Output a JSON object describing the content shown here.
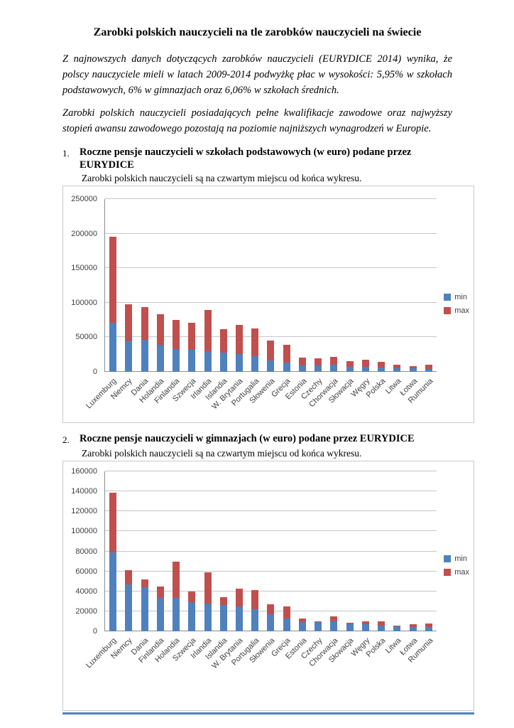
{
  "doc": {
    "title": "Zarobki polskich nauczycieli na tle zarobków nauczycieli na świecie",
    "paragraph1": "Z najnowszych danych dotyczących zarobków nauczycieli (EURYDICE 2014) wynika, że polscy nauczyciele mieli w latach 2009-2014 podwyżkę płac w wysokości: 5,95% w szkołach podstawowych, 6% w gimnazjach oraz 6,06% w szkołach średnich.",
    "paragraph2": "Zarobki polskich nauczycieli posiadających pełne kwalifikacje zawodowe oraz najwyższy stopień awansu zawodowego pozostają na poziomie najniższych wynagrodzeń w Europie.",
    "items": [
      {
        "number": "1.",
        "heading": "Roczne pensje nauczycieli w szkołach podstawowych (w euro) podane przez EURYDICE",
        "caption": "Zarobki polskich nauczycieli są na czwartym miejscu od końca wykresu."
      },
      {
        "number": "2.",
        "heading": "Roczne pensje nauczycieli w gimnazjach (w euro) podane przez EURYDICE",
        "caption": "Zarobki polskich nauczycieli są na czwartym miejscu od końca wykresu."
      }
    ]
  },
  "chart_data": [
    {
      "type": "bar",
      "stacked": true,
      "title": "Roczne pensje nauczycieli w szkołach podstawowych (w euro)",
      "categories": [
        "Luxemburg",
        "Niemcy",
        "Dania",
        "Holandia",
        "Finlandia",
        "Szwecja",
        "Irlandia",
        "Islandia",
        "W. Brytania",
        "Portugalia",
        "Słowenia",
        "Grecja",
        "Estonia",
        "Czechy",
        "Chorwacja",
        "Słowacja",
        "Węgry",
        "Polska",
        "Litwa",
        "Łotwa",
        "Rumunia"
      ],
      "series": [
        {
          "name": "min",
          "color": "#4F81BD",
          "values": [
            71000,
            44000,
            46000,
            39000,
            33000,
            32000,
            30000,
            28000,
            26000,
            23000,
            16500,
            13000,
            9000,
            9000,
            10000,
            7000,
            7000,
            6000,
            5000,
            5000,
            4000
          ]
        },
        {
          "name": "max",
          "color": "#C0504D",
          "values": [
            196000,
            98000,
            94000,
            83000,
            75000,
            71000,
            90000,
            62000,
            68000,
            63000,
            45000,
            39000,
            21000,
            20000,
            22000,
            15000,
            18000,
            14000,
            10000,
            8000,
            10000
          ]
        }
      ],
      "ylim": [
        0,
        250000
      ],
      "ytick_step": 50000,
      "grid": true,
      "legend_position": "right"
    },
    {
      "type": "bar",
      "stacked": true,
      "title": "Roczne pensje nauczycieli w gimnazjach (w euro)",
      "categories": [
        "Luxemburg",
        "Niemcy",
        "Dania",
        "Finlandia",
        "Holandia",
        "Szwecja",
        "Irlandia",
        "Islandia",
        "W. Brytania",
        "Portugalia",
        "Słowenia",
        "Grecja",
        "Estonia",
        "Czechy",
        "Chorwacja",
        "Słowacja",
        "Węgry",
        "Polska",
        "Litwa",
        "Łotwa",
        "Rumunia"
      ],
      "series": [
        {
          "name": "min",
          "color": "#4F81BD",
          "values": [
            79000,
            47000,
            44000,
            33500,
            33500,
            29000,
            28000,
            26000,
            25000,
            22000,
            17000,
            13000,
            9000,
            9000,
            10000,
            7000,
            7000,
            6000,
            5000,
            4000,
            4000
          ]
        },
        {
          "name": "max",
          "color": "#C0504D",
          "values": [
            139000,
            61000,
            52000,
            45000,
            70000,
            40000,
            59000,
            34000,
            43000,
            41000,
            27000,
            25000,
            13000,
            10000,
            15000,
            8500,
            10000,
            10000,
            5500,
            7000,
            8000
          ]
        }
      ],
      "ylim": [
        0,
        160000
      ],
      "ytick_step": 20000,
      "grid": true,
      "legend_position": "right"
    }
  ]
}
